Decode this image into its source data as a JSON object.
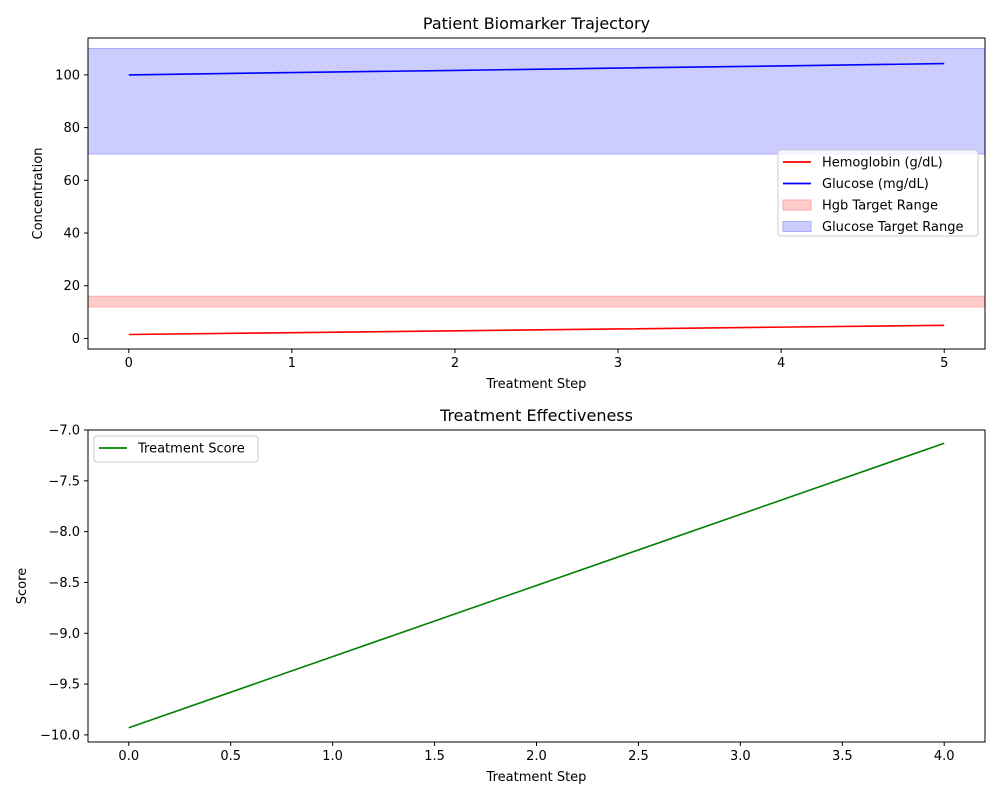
{
  "chart_data": [
    {
      "type": "line",
      "title": "Patient Biomarker Trajectory",
      "xlabel": "Treatment Step",
      "ylabel": "Concentration",
      "xlim": [
        -0.25,
        5.25
      ],
      "ylim": [
        -4,
        114
      ],
      "xticks": [
        0,
        1,
        2,
        3,
        4,
        5
      ],
      "xtick_labels": [
        "0",
        "1",
        "2",
        "3",
        "4",
        "5"
      ],
      "yticks": [
        0,
        20,
        40,
        60,
        80,
        100
      ],
      "ytick_labels": [
        "0",
        "20",
        "40",
        "60",
        "80",
        "100"
      ],
      "grid": false,
      "legend_position": "center-right",
      "series": [
        {
          "name": "Hemoglobin (g/dL)",
          "color": "#ff0000",
          "x": [
            0,
            1,
            2,
            3,
            4,
            5
          ],
          "values": [
            1.5,
            2.2,
            2.9,
            3.6,
            4.3,
            5.0
          ]
        },
        {
          "name": "Glucose (mg/dL)",
          "color": "#0000ff",
          "x": [
            0,
            1,
            2,
            3,
            4,
            5
          ],
          "values": [
            100.0,
            100.9,
            101.7,
            102.6,
            103.4,
            104.3
          ]
        }
      ],
      "bands": [
        {
          "name": "Hgb Target Range",
          "color": "#ffcccc",
          "edge": "#ffaaaa",
          "from": 12,
          "to": 16
        },
        {
          "name": "Glucose Target Range",
          "color": "#ccccff",
          "edge": "#aaaaff",
          "from": 70,
          "to": 110
        }
      ]
    },
    {
      "type": "line",
      "title": "Treatment Effectiveness",
      "xlabel": "Treatment Step",
      "ylabel": "Score",
      "xlim": [
        -0.2,
        4.2
      ],
      "ylim": [
        -10.07,
        -7.0
      ],
      "xticks": [
        0,
        0.5,
        1,
        1.5,
        2,
        2.5,
        3,
        3.5,
        4
      ],
      "xtick_labels": [
        "0.0",
        "0.5",
        "1.0",
        "1.5",
        "2.0",
        "2.5",
        "3.0",
        "3.5",
        "4.0"
      ],
      "yticks": [
        -10,
        -9.5,
        -9,
        -8.5,
        -8,
        -7.5,
        -7
      ],
      "ytick_labels": [
        "−10.0",
        "−9.5",
        "−9.0",
        "−8.5",
        "−8.0",
        "−7.5",
        "−7.0"
      ],
      "grid": false,
      "legend_position": "upper-left",
      "series": [
        {
          "name": "Treatment Score",
          "color": "#008000",
          "x": [
            0,
            1,
            2,
            3,
            4
          ],
          "values": [
            -9.93,
            -9.23,
            -8.53,
            -7.83,
            -7.13
          ]
        }
      ],
      "bands": []
    }
  ]
}
